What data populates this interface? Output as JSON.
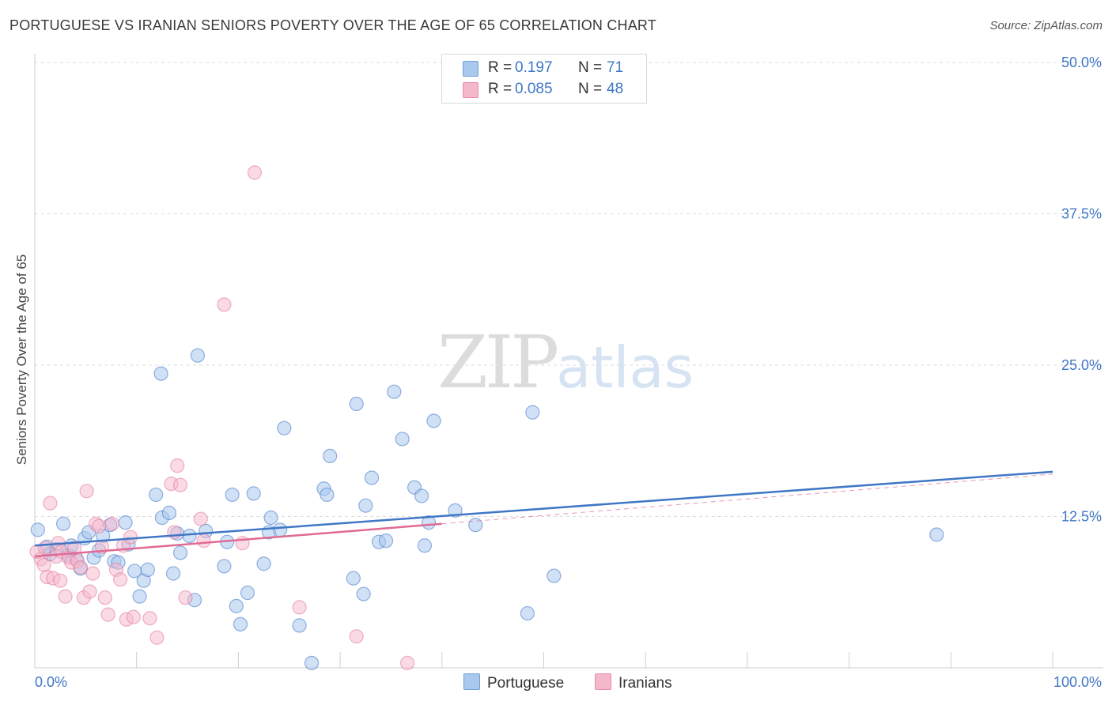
{
  "header": {
    "title": "PORTUGUESE VS IRANIAN SENIORS POVERTY OVER THE AGE OF 65 CORRELATION CHART",
    "source": "Source: ZipAtlas.com"
  },
  "watermark": {
    "zip": "ZIP",
    "atlas": "atlas"
  },
  "legend": {
    "rows": [
      {
        "r_label": "R =",
        "r_value": "0.197",
        "n_label": "N =",
        "n_value": "71",
        "color": "#a9c8ee"
      },
      {
        "r_label": "R =",
        "r_value": "0.085",
        "n_label": "N =",
        "n_value": "48",
        "color": "#f5b8cb"
      }
    ]
  },
  "bottom_legend": {
    "portuguese": "Portuguese",
    "iranians": "Iranians"
  },
  "chart_data": {
    "type": "scatter",
    "title": "PORTUGUESE VS IRANIAN SENIORS POVERTY OVER THE AGE OF 65 CORRELATION CHART",
    "xlabel": "",
    "ylabel": "Seniors Poverty Over the Age of 65",
    "xlim": [
      0,
      100
    ],
    "ylim": [
      0,
      50
    ],
    "x_tick_labels": [
      "0.0%",
      "100.0%"
    ],
    "y_ticks": [
      12.5,
      25.0,
      37.5,
      50.0
    ],
    "y_tick_labels": [
      "12.5%",
      "25.0%",
      "37.5%",
      "50.0%"
    ],
    "grid": true,
    "legend_position": "top-center",
    "colors": {
      "portuguese": "#3f77c6",
      "iranians": "#e06a94",
      "portuguese_fill": "#a9c8ee",
      "iranians_fill": "#f5b8cb"
    },
    "series": [
      {
        "name": "Portuguese",
        "r": 0.197,
        "n": 71,
        "trend": {
          "x": [
            0,
            100
          ],
          "y": [
            10.1,
            16.2
          ]
        },
        "points": [
          [
            0.3,
            11.4
          ],
          [
            1.2,
            10.0
          ],
          [
            1.5,
            9.4
          ],
          [
            2.1,
            9.8
          ],
          [
            2.8,
            11.9
          ],
          [
            3.3,
            9.3
          ],
          [
            3.6,
            10.1
          ],
          [
            4.1,
            9.0
          ],
          [
            4.5,
            8.2
          ],
          [
            4.9,
            10.7
          ],
          [
            5.3,
            11.2
          ],
          [
            5.8,
            9.1
          ],
          [
            6.3,
            9.7
          ],
          [
            6.7,
            10.9
          ],
          [
            7.4,
            11.8
          ],
          [
            7.8,
            8.8
          ],
          [
            8.2,
            8.7
          ],
          [
            8.9,
            12.0
          ],
          [
            9.2,
            10.2
          ],
          [
            9.8,
            8.0
          ],
          [
            10.3,
            5.9
          ],
          [
            10.7,
            7.2
          ],
          [
            11.1,
            8.1
          ],
          [
            11.9,
            14.3
          ],
          [
            12.5,
            12.4
          ],
          [
            13.2,
            12.8
          ],
          [
            13.6,
            7.8
          ],
          [
            14.0,
            11.1
          ],
          [
            14.3,
            9.5
          ],
          [
            12.4,
            24.3
          ],
          [
            15.2,
            10.9
          ],
          [
            15.7,
            5.6
          ],
          [
            16.0,
            25.8
          ],
          [
            16.8,
            11.3
          ],
          [
            18.6,
            8.4
          ],
          [
            18.9,
            10.4
          ],
          [
            19.4,
            14.3
          ],
          [
            19.8,
            5.1
          ],
          [
            20.2,
            3.6
          ],
          [
            20.9,
            6.2
          ],
          [
            21.5,
            14.4
          ],
          [
            22.5,
            8.6
          ],
          [
            23.0,
            11.2
          ],
          [
            23.2,
            12.4
          ],
          [
            24.1,
            11.4
          ],
          [
            24.5,
            19.8
          ],
          [
            26.0,
            3.5
          ],
          [
            27.2,
            0.4
          ],
          [
            28.4,
            14.8
          ],
          [
            28.7,
            14.3
          ],
          [
            29.0,
            17.5
          ],
          [
            31.3,
            7.4
          ],
          [
            31.6,
            21.8
          ],
          [
            32.3,
            6.1
          ],
          [
            32.5,
            13.4
          ],
          [
            33.1,
            15.7
          ],
          [
            33.8,
            10.4
          ],
          [
            34.5,
            10.5
          ],
          [
            35.3,
            22.8
          ],
          [
            36.1,
            18.9
          ],
          [
            37.3,
            14.9
          ],
          [
            38.0,
            14.2
          ],
          [
            38.3,
            10.1
          ],
          [
            38.7,
            12.0
          ],
          [
            39.2,
            20.4
          ],
          [
            41.3,
            13.0
          ],
          [
            43.3,
            11.8
          ],
          [
            48.4,
            4.5
          ],
          [
            48.9,
            21.1
          ],
          [
            51.0,
            7.6
          ],
          [
            88.6,
            11.0
          ]
        ]
      },
      {
        "name": "Iranians",
        "r": 0.085,
        "n": 48,
        "trend": {
          "x": [
            0,
            40
          ],
          "y": [
            9.2,
            11.9
          ]
        },
        "trend_dashed": {
          "x": [
            40,
            100
          ],
          "y": [
            11.9,
            16.0
          ]
        },
        "points": [
          [
            0.6,
            9.0
          ],
          [
            0.9,
            8.5
          ],
          [
            1.2,
            7.5
          ],
          [
            1.5,
            13.6
          ],
          [
            1.8,
            7.4
          ],
          [
            2.1,
            9.2
          ],
          [
            2.3,
            10.3
          ],
          [
            2.6,
            9.6
          ],
          [
            3.0,
            5.9
          ],
          [
            3.3,
            9.1
          ],
          [
            3.6,
            8.7
          ],
          [
            3.9,
            9.9
          ],
          [
            4.2,
            8.8
          ],
          [
            4.5,
            8.3
          ],
          [
            4.8,
            5.8
          ],
          [
            5.1,
            14.6
          ],
          [
            5.4,
            6.3
          ],
          [
            5.7,
            7.8
          ],
          [
            6.0,
            11.9
          ],
          [
            6.3,
            11.7
          ],
          [
            6.6,
            10.0
          ],
          [
            6.9,
            5.8
          ],
          [
            7.2,
            4.4
          ],
          [
            7.6,
            11.9
          ],
          [
            8.0,
            8.1
          ],
          [
            8.4,
            7.3
          ],
          [
            8.7,
            10.1
          ],
          [
            9.0,
            4.0
          ],
          [
            9.4,
            10.8
          ],
          [
            9.7,
            4.2
          ],
          [
            11.3,
            4.1
          ],
          [
            12.0,
            2.5
          ],
          [
            13.4,
            15.2
          ],
          [
            13.7,
            11.2
          ],
          [
            14.0,
            16.7
          ],
          [
            14.3,
            15.1
          ],
          [
            14.8,
            5.8
          ],
          [
            16.3,
            12.3
          ],
          [
            16.6,
            10.5
          ],
          [
            18.6,
            30.0
          ],
          [
            20.4,
            10.3
          ],
          [
            21.6,
            40.9
          ],
          [
            26.0,
            5.0
          ],
          [
            31.6,
            2.6
          ],
          [
            36.6,
            0.4
          ],
          [
            0.2,
            9.6
          ],
          [
            1.0,
            9.9
          ],
          [
            2.5,
            7.2
          ]
        ]
      }
    ]
  }
}
